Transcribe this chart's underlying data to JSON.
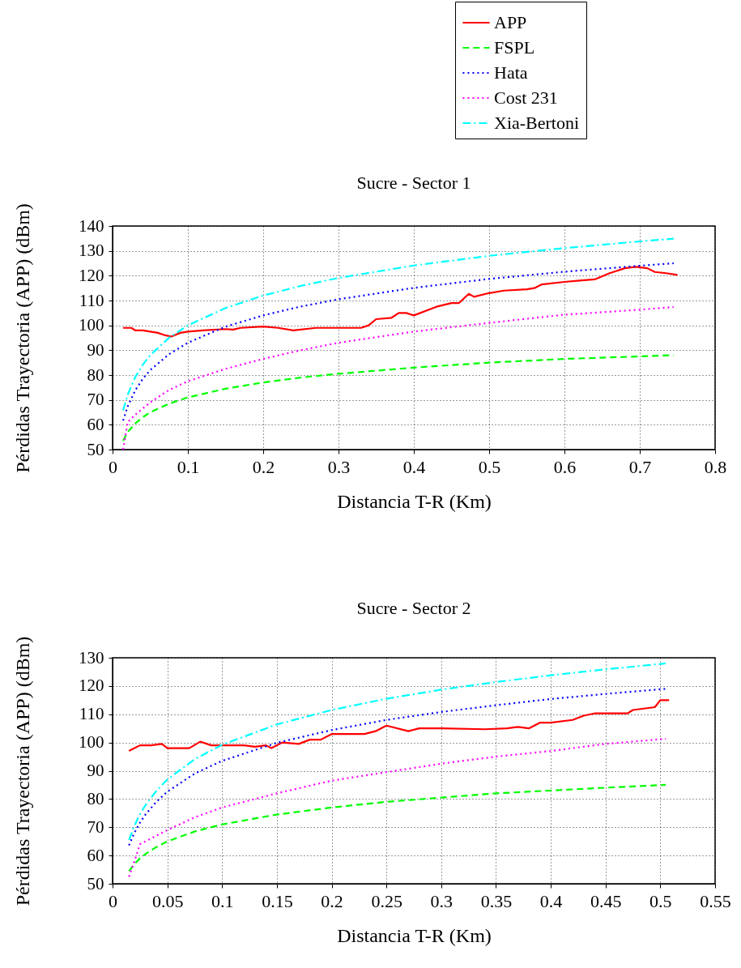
{
  "chart_data": [
    {
      "type": "line",
      "title": "Sucre - Sector 1",
      "xlabel": "Distancia T-R (Km)",
      "ylabel": "Pérdidas Trayectoria (APP) (dBm)",
      "xlim": [
        0,
        0.8
      ],
      "xticks": [
        0,
        0.1,
        0.2,
        0.3,
        0.4,
        0.5,
        0.6,
        0.7,
        0.8
      ],
      "ylim": [
        50,
        140
      ],
      "yticks": [
        50,
        60,
        70,
        80,
        90,
        100,
        110,
        120,
        130,
        140
      ],
      "grid": true,
      "legend": "top right",
      "series": [
        {
          "name": "APP",
          "color": "#ff0000",
          "line_style": "solid",
          "x": [
            0.014,
            0.025,
            0.03,
            0.04,
            0.05,
            0.06,
            0.07,
            0.078,
            0.09,
            0.1,
            0.12,
            0.15,
            0.16,
            0.17,
            0.2,
            0.22,
            0.24,
            0.27,
            0.3,
            0.33,
            0.34,
            0.35,
            0.37,
            0.38,
            0.39,
            0.4,
            0.43,
            0.45,
            0.46,
            0.473,
            0.48,
            0.5,
            0.52,
            0.55,
            0.56,
            0.57,
            0.6,
            0.62,
            0.64,
            0.66,
            0.68,
            0.695,
            0.71,
            0.72,
            0.735,
            0.75
          ],
          "values": [
            99,
            99,
            98,
            98,
            97.5,
            97,
            96,
            95.5,
            97,
            97.5,
            98,
            98.5,
            98.3,
            99,
            99.5,
            99,
            98,
            99,
            99,
            99,
            100,
            102.5,
            103,
            105,
            105,
            104,
            107.5,
            109,
            109,
            112.7,
            111.5,
            113,
            114,
            114.5,
            115,
            116.5,
            117.5,
            118,
            118.5,
            121,
            123,
            123.6,
            123,
            121.5,
            121,
            120.3
          ]
        },
        {
          "name": "FSPL",
          "color": "#00ff00",
          "line_style": "dashed",
          "x": [
            0.014,
            0.02,
            0.03,
            0.04,
            0.05,
            0.075,
            0.1,
            0.15,
            0.2,
            0.25,
            0.3,
            0.4,
            0.5,
            0.6,
            0.7,
            0.745
          ],
          "values": [
            53.5,
            57,
            60.5,
            63,
            65,
            68.5,
            71,
            74.5,
            77,
            79,
            80.5,
            83,
            85,
            86.5,
            87.5,
            88
          ]
        },
        {
          "name": "Hata",
          "color": "#0000ff",
          "line_style": "dotted",
          "x": [
            0.014,
            0.02,
            0.03,
            0.04,
            0.05,
            0.075,
            0.1,
            0.15,
            0.2,
            0.25,
            0.3,
            0.4,
            0.5,
            0.6,
            0.7,
            0.745
          ],
          "values": [
            61.7,
            67.3,
            73.8,
            78.4,
            82,
            88.4,
            93,
            99.5,
            104,
            107.6,
            110.5,
            115.1,
            118.7,
            121.6,
            124,
            125
          ]
        },
        {
          "name": "Cost 231",
          "color": "#ff00ff",
          "line_style": "dotted",
          "x": [
            0.014,
            0.02,
            0.03,
            0.04,
            0.05,
            0.075,
            0.1,
            0.15,
            0.2,
            0.25,
            0.3,
            0.4,
            0.5,
            0.6,
            0.7,
            0.745
          ],
          "values": [
            50,
            61,
            64,
            66.5,
            69,
            74,
            77.5,
            82.5,
            86.5,
            90,
            93,
            97.5,
            101,
            104.3,
            106.3,
            107.4
          ]
        },
        {
          "name": "Xia-Bertoni",
          "color": "#00ffff",
          "line_style": "dashdot",
          "x": [
            0.014,
            0.02,
            0.03,
            0.04,
            0.05,
            0.075,
            0.1,
            0.15,
            0.2,
            0.25,
            0.3,
            0.4,
            0.5,
            0.6,
            0.7,
            0.745
          ],
          "values": [
            65.8,
            72,
            79.1,
            84.1,
            88,
            95,
            100,
            107,
            112,
            115.9,
            119.1,
            124.1,
            128,
            131.1,
            133.8,
            134.9
          ]
        }
      ]
    },
    {
      "type": "line",
      "title": "Sucre - Sector 2",
      "xlabel": "Distancia T-R (Km)",
      "ylabel": "Pérdidas Trayectoria (APP) (dBm)",
      "xlim": [
        0,
        0.55
      ],
      "xticks": [
        0,
        0.05,
        0.1,
        0.15,
        0.2,
        0.25,
        0.3,
        0.35,
        0.4,
        0.45,
        0.5,
        0.55
      ],
      "ylim": [
        50,
        130
      ],
      "yticks": [
        50,
        60,
        70,
        80,
        90,
        100,
        110,
        120,
        130
      ],
      "grid": true,
      "series": [
        {
          "color": "#ff0000",
          "line_style": "solid",
          "x": [
            0.015,
            0.025,
            0.035,
            0.045,
            0.05,
            0.07,
            0.08,
            0.09,
            0.1,
            0.12,
            0.13,
            0.14,
            0.145,
            0.155,
            0.17,
            0.18,
            0.19,
            0.2,
            0.23,
            0.24,
            0.25,
            0.27,
            0.28,
            0.3,
            0.34,
            0.36,
            0.37,
            0.38,
            0.39,
            0.4,
            0.42,
            0.43,
            0.44,
            0.47,
            0.475,
            0.495,
            0.5,
            0.508
          ],
          "values": [
            97,
            99,
            99,
            99.5,
            98,
            98,
            100.3,
            99,
            99,
            99,
            98.5,
            99,
            98,
            100,
            99.5,
            101,
            101,
            103,
            103,
            104,
            106,
            104,
            105,
            105,
            104.7,
            105,
            105.5,
            105,
            107,
            107,
            108,
            109.5,
            110.3,
            110.3,
            111.5,
            112.5,
            115,
            115
          ]
        },
        {
          "color": "#00ff00",
          "line_style": "dashed",
          "x": [
            0.015,
            0.02,
            0.025,
            0.03,
            0.04,
            0.05,
            0.075,
            0.1,
            0.15,
            0.2,
            0.25,
            0.3,
            0.35,
            0.4,
            0.45,
            0.505
          ],
          "values": [
            54.5,
            57,
            59,
            60.5,
            63,
            65,
            68.5,
            71,
            74.5,
            77,
            79,
            80.5,
            82,
            83,
            84,
            85
          ]
        },
        {
          "color": "#0000ff",
          "line_style": "dotted",
          "x": [
            0.015,
            0.02,
            0.025,
            0.03,
            0.04,
            0.05,
            0.075,
            0.1,
            0.15,
            0.2,
            0.25,
            0.3,
            0.35,
            0.4,
            0.45,
            0.505
          ],
          "values": [
            63.6,
            68.1,
            71.6,
            74.5,
            79,
            82.6,
            89,
            93.5,
            99.9,
            104.4,
            108,
            110.8,
            113.2,
            115.4,
            117.2,
            119
          ]
        },
        {
          "color": "#ff00ff",
          "line_style": "dotted",
          "x": [
            0.015,
            0.02,
            0.025,
            0.03,
            0.04,
            0.05,
            0.075,
            0.1,
            0.15,
            0.2,
            0.25,
            0.3,
            0.35,
            0.4,
            0.45,
            0.505
          ],
          "values": [
            52.5,
            58,
            64,
            65,
            67,
            69,
            73.5,
            77,
            82,
            86.5,
            89.5,
            92.5,
            95,
            97,
            99.5,
            101.3
          ]
        },
        {
          "color": "#00ffff",
          "line_style": "dashdot",
          "x": [
            0.015,
            0.02,
            0.025,
            0.03,
            0.04,
            0.05,
            0.075,
            0.1,
            0.15,
            0.2,
            0.25,
            0.3,
            0.35,
            0.4,
            0.45,
            0.505
          ],
          "values": [
            65.5,
            70.6,
            74.6,
            77.8,
            82.9,
            86.9,
            94.1,
            99.2,
            106.4,
            111.5,
            115.5,
            118.7,
            121.4,
            123.8,
            125.9,
            128
          ]
        }
      ]
    }
  ]
}
